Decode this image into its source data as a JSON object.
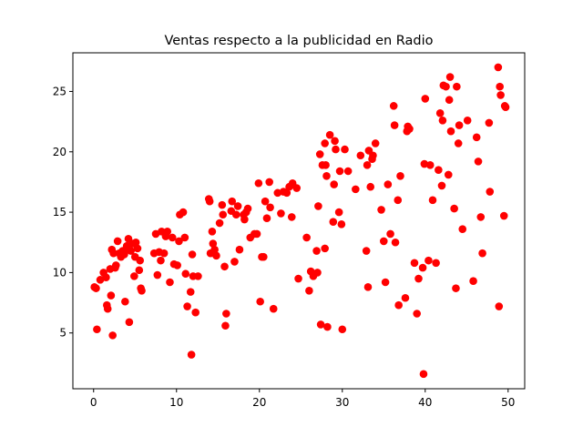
{
  "chart_data": {
    "type": "scatter",
    "title": "Ventas respecto a la publicidad en Radio",
    "xlabel": "",
    "ylabel": "",
    "xlim": [
      -2.5,
      52.0
    ],
    "ylim": [
      0.38,
      28.2
    ],
    "xticks": [
      0,
      10,
      20,
      30,
      40,
      50
    ],
    "yticks": [
      5,
      10,
      15,
      20,
      25
    ],
    "grid": false,
    "marker_color": "#ff0000",
    "points": [
      [
        0.1,
        8.8
      ],
      [
        0.3,
        8.7
      ],
      [
        0.4,
        5.3
      ],
      [
        0.8,
        9.4
      ],
      [
        1.2,
        10.0
      ],
      [
        1.5,
        9.6
      ],
      [
        1.6,
        7.3
      ],
      [
        1.7,
        7.0
      ],
      [
        2.0,
        10.3
      ],
      [
        2.1,
        8.1
      ],
      [
        2.2,
        11.9
      ],
      [
        2.3,
        4.8
      ],
      [
        2.4,
        11.6
      ],
      [
        2.6,
        10.4
      ],
      [
        2.7,
        10.6
      ],
      [
        2.9,
        12.6
      ],
      [
        3.1,
        11.6
      ],
      [
        3.3,
        11.3
      ],
      [
        3.5,
        11.8
      ],
      [
        3.7,
        11.5
      ],
      [
        3.8,
        7.6
      ],
      [
        4.0,
        12.2
      ],
      [
        4.1,
        11.9
      ],
      [
        4.2,
        12.8
      ],
      [
        4.3,
        5.9
      ],
      [
        4.5,
        11.8
      ],
      [
        4.7,
        12.4
      ],
      [
        4.9,
        9.7
      ],
      [
        5.0,
        11.3
      ],
      [
        5.1,
        12.5
      ],
      [
        5.3,
        12.0
      ],
      [
        5.5,
        10.2
      ],
      [
        5.6,
        11.0
      ],
      [
        5.7,
        8.7
      ],
      [
        5.8,
        8.5
      ],
      [
        7.3,
        11.6
      ],
      [
        7.5,
        13.2
      ],
      [
        7.7,
        9.8
      ],
      [
        7.9,
        11.7
      ],
      [
        8.1,
        11.0
      ],
      [
        8.2,
        13.4
      ],
      [
        8.5,
        11.6
      ],
      [
        8.7,
        13.0
      ],
      [
        8.9,
        13.4
      ],
      [
        9.2,
        9.2
      ],
      [
        9.5,
        12.9
      ],
      [
        9.7,
        10.7
      ],
      [
        10.1,
        10.6
      ],
      [
        10.3,
        12.6
      ],
      [
        10.4,
        14.8
      ],
      [
        10.8,
        15.0
      ],
      [
        11.0,
        12.9
      ],
      [
        11.1,
        9.9
      ],
      [
        11.3,
        7.2
      ],
      [
        11.7,
        8.4
      ],
      [
        11.8,
        3.2
      ],
      [
        11.9,
        11.5
      ],
      [
        12.0,
        9.7
      ],
      [
        12.3,
        6.7
      ],
      [
        12.6,
        9.7
      ],
      [
        13.9,
        16.1
      ],
      [
        14.0,
        15.9
      ],
      [
        14.1,
        11.6
      ],
      [
        14.3,
        13.4
      ],
      [
        14.4,
        12.4
      ],
      [
        14.6,
        11.9
      ],
      [
        14.8,
        11.4
      ],
      [
        15.2,
        14.1
      ],
      [
        15.5,
        15.6
      ],
      [
        15.6,
        14.8
      ],
      [
        15.8,
        10.5
      ],
      [
        15.9,
        5.6
      ],
      [
        16.0,
        6.6
      ],
      [
        16.6,
        15.1
      ],
      [
        16.7,
        15.9
      ],
      [
        17.0,
        10.9
      ],
      [
        17.2,
        14.8
      ],
      [
        17.4,
        15.5
      ],
      [
        17.6,
        11.9
      ],
      [
        18.1,
        14.8
      ],
      [
        18.2,
        14.4
      ],
      [
        18.4,
        15.0
      ],
      [
        18.6,
        15.3
      ],
      [
        18.9,
        12.9
      ],
      [
        19.4,
        13.2
      ],
      [
        19.7,
        13.2
      ],
      [
        19.9,
        17.4
      ],
      [
        20.1,
        7.6
      ],
      [
        20.3,
        11.3
      ],
      [
        20.5,
        11.3
      ],
      [
        20.7,
        15.9
      ],
      [
        20.9,
        14.5
      ],
      [
        21.2,
        17.5
      ],
      [
        21.3,
        15.4
      ],
      [
        21.7,
        7.0
      ],
      [
        22.2,
        16.6
      ],
      [
        22.6,
        14.9
      ],
      [
        22.9,
        16.7
      ],
      [
        23.3,
        16.6
      ],
      [
        23.6,
        17.1
      ],
      [
        23.9,
        14.6
      ],
      [
        24.0,
        17.4
      ],
      [
        24.5,
        17.0
      ],
      [
        24.7,
        9.5
      ],
      [
        25.7,
        12.9
      ],
      [
        26.0,
        8.5
      ],
      [
        26.2,
        10.1
      ],
      [
        26.5,
        9.7
      ],
      [
        26.9,
        11.8
      ],
      [
        27.0,
        10.0
      ],
      [
        27.1,
        15.5
      ],
      [
        27.3,
        19.8
      ],
      [
        27.4,
        5.7
      ],
      [
        27.6,
        18.9
      ],
      [
        27.9,
        12.0
      ],
      [
        27.9,
        20.7
      ],
      [
        28.0,
        18.9
      ],
      [
        28.1,
        18.0
      ],
      [
        28.2,
        5.5
      ],
      [
        28.5,
        21.4
      ],
      [
        28.9,
        14.2
      ],
      [
        29.0,
        17.3
      ],
      [
        29.1,
        20.9
      ],
      [
        29.2,
        20.2
      ],
      [
        29.6,
        15.0
      ],
      [
        29.7,
        18.4
      ],
      [
        29.9,
        14.0
      ],
      [
        30.0,
        5.3
      ],
      [
        30.3,
        20.2
      ],
      [
        30.7,
        18.4
      ],
      [
        31.6,
        16.9
      ],
      [
        32.2,
        19.7
      ],
      [
        32.9,
        11.8
      ],
      [
        33.0,
        18.9
      ],
      [
        33.1,
        8.8
      ],
      [
        33.2,
        20.1
      ],
      [
        33.4,
        17.1
      ],
      [
        33.6,
        19.4
      ],
      [
        33.7,
        19.7
      ],
      [
        34.0,
        20.7
      ],
      [
        34.7,
        15.2
      ],
      [
        35.0,
        12.6
      ],
      [
        35.2,
        9.2
      ],
      [
        35.5,
        17.3
      ],
      [
        35.8,
        13.2
      ],
      [
        36.2,
        23.8
      ],
      [
        36.3,
        22.2
      ],
      [
        36.4,
        12.5
      ],
      [
        36.7,
        16.0
      ],
      [
        36.8,
        7.3
      ],
      [
        37.0,
        18.0
      ],
      [
        37.6,
        7.9
      ],
      [
        37.8,
        21.7
      ],
      [
        37.9,
        22.1
      ],
      [
        38.1,
        21.9
      ],
      [
        38.7,
        10.8
      ],
      [
        39.0,
        6.6
      ],
      [
        39.2,
        9.5
      ],
      [
        39.7,
        10.4
      ],
      [
        39.8,
        1.6
      ],
      [
        39.9,
        19.0
      ],
      [
        40.0,
        24.4
      ],
      [
        40.4,
        11.0
      ],
      [
        40.6,
        18.9
      ],
      [
        40.9,
        16.0
      ],
      [
        41.3,
        10.8
      ],
      [
        41.6,
        18.5
      ],
      [
        41.8,
        23.2
      ],
      [
        42.0,
        17.2
      ],
      [
        42.1,
        22.6
      ],
      [
        42.2,
        25.5
      ],
      [
        42.5,
        25.4
      ],
      [
        42.8,
        18.1
      ],
      [
        42.9,
        24.3
      ],
      [
        43.0,
        26.2
      ],
      [
        43.1,
        21.7
      ],
      [
        43.5,
        15.3
      ],
      [
        43.7,
        8.7
      ],
      [
        43.8,
        25.4
      ],
      [
        44.0,
        20.7
      ],
      [
        44.1,
        22.2
      ],
      [
        44.5,
        13.6
      ],
      [
        45.1,
        22.6
      ],
      [
        45.8,
        9.3
      ],
      [
        46.2,
        21.2
      ],
      [
        46.4,
        19.2
      ],
      [
        46.7,
        14.6
      ],
      [
        46.9,
        11.6
      ],
      [
        47.7,
        22.4
      ],
      [
        47.8,
        16.7
      ],
      [
        48.8,
        27.0
      ],
      [
        48.9,
        7.2
      ],
      [
        49.0,
        25.4
      ],
      [
        49.1,
        24.7
      ],
      [
        49.5,
        14.7
      ],
      [
        49.6,
        23.8
      ],
      [
        49.7,
        23.7
      ]
    ]
  }
}
